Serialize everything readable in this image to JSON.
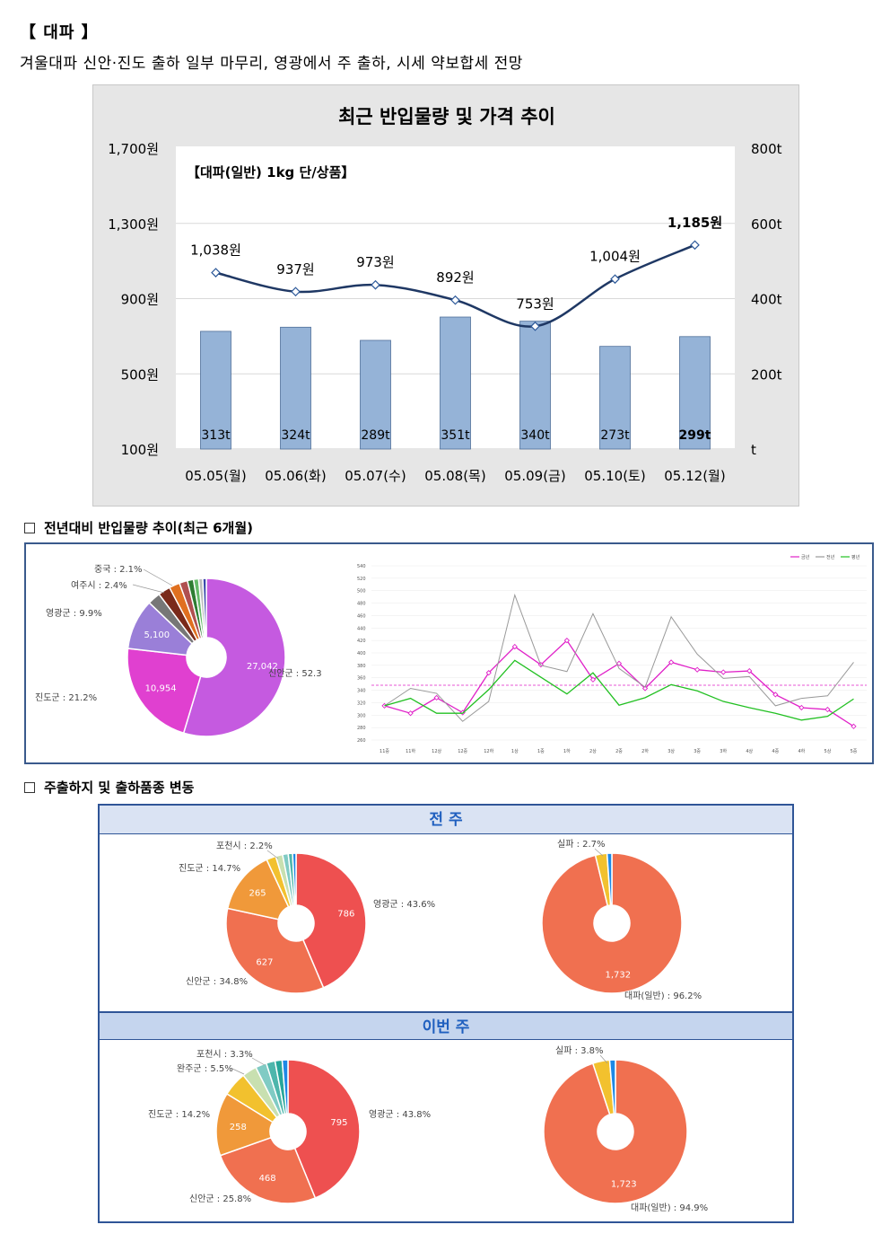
{
  "header": {
    "title": "【 대파 】",
    "description": "겨울대파 신안·진도 출하 일부 마무리, 영광에서 주 출하, 시세 약보합세 전망"
  },
  "price_chart": {
    "title": "최근 반입물량 및 가격 추이",
    "subtitle": "【대파(일반) 1kg 단/상품】",
    "left_ticks": [
      "1,700원",
      "1,300원",
      "900원",
      "500원",
      "100원"
    ],
    "right_ticks": [
      "800t",
      "600t",
      "400t",
      "200t",
      "t"
    ]
  },
  "yoy_heading": "전년대비 반입물량 추이(최근 6개월)",
  "ship_heading": "주출하지 및 출하품종 변동",
  "ship_panel": {
    "prev_label": "전 주",
    "curr_label": "이번 주"
  },
  "colors": {
    "bar": "#95b3d7",
    "price_line": "#1f3864",
    "pie_shinan": "#c55ae0",
    "pie_jindo": "#e040d0",
    "pie_yeonggwang_purple": "#9a7fd8",
    "ship_red": "#ee5050",
    "ship_orange": "#f07050",
    "ship_amber": "#f0993a",
    "series_current": "#e020c8",
    "series_last_year": "#999999",
    "series_average": "#22c022"
  },
  "chart_data": [
    {
      "id": "price-volume",
      "type": "bar+line",
      "title": "최근 반입물량 및 가격 추이",
      "subtitle": "【대파(일반) 1kg 단/상품】",
      "categories": [
        "05.05(월)",
        "05.06(화)",
        "05.07(수)",
        "05.08(목)",
        "05.09(금)",
        "05.10(토)",
        "05.12(월)"
      ],
      "series": [
        {
          "name": "반입물량",
          "type": "bar",
          "axis": "right",
          "unit": "t",
          "values": [
            313,
            324,
            289,
            351,
            340,
            273,
            299
          ],
          "labels": [
            "313t",
            "324t",
            "289t",
            "351t",
            "340t",
            "273t",
            "299t"
          ]
        },
        {
          "name": "가격",
          "type": "line",
          "axis": "left",
          "unit": "원",
          "values": [
            1038,
            937,
            973,
            892,
            753,
            1004,
            1185
          ],
          "labels": [
            "1,038원",
            "937원",
            "973원",
            "892원",
            "753원",
            "1,004원",
            "1,185원"
          ]
        }
      ],
      "ylim_left": [
        100,
        1700
      ],
      "ylim_right": [
        0,
        800
      ]
    },
    {
      "id": "yoy-origin-pie",
      "type": "pie",
      "slices": [
        {
          "label": "신안군 : 52.3%",
          "value": 27042,
          "value_label": "27,042",
          "pct": 52.3,
          "color": "#c55ae0"
        },
        {
          "label": "진도군 : 21.2%",
          "value": 10954,
          "value_label": "10,954",
          "pct": 21.2,
          "color": "#e040d0"
        },
        {
          "label": "영광군 : 9.9%",
          "value": 5100,
          "value_label": "5,100",
          "pct": 9.9,
          "color": "#9a7fd8"
        },
        {
          "label": "",
          "value": 0,
          "pct": 2.5,
          "color": "#777777"
        },
        {
          "label": "여주시 : 2.4%",
          "value": 0,
          "pct": 2.4,
          "color": "#7a2a1a"
        },
        {
          "label": "중국 : 2.1%",
          "value": 0,
          "pct": 2.1,
          "color": "#e07020"
        },
        {
          "label": "",
          "value": 0,
          "pct": 1.6,
          "color": "#b05050"
        },
        {
          "label": "",
          "value": 0,
          "pct": 1.2,
          "color": "#2e7d32"
        },
        {
          "label": "",
          "value": 0,
          "pct": 1.0,
          "color": "#66bb6a"
        },
        {
          "label": "",
          "value": 0,
          "pct": 0.8,
          "color": "#bbbbbb"
        },
        {
          "label": "",
          "value": 0,
          "pct": 0.7,
          "color": "#3949ab"
        }
      ]
    },
    {
      "id": "yoy-trend",
      "type": "line",
      "x": [
        "11중",
        "11하",
        "12상",
        "12중",
        "12하",
        "1상",
        "1중",
        "1하",
        "2상",
        "2중",
        "2하",
        "3상",
        "3중",
        "3하",
        "4상",
        "4중",
        "4하",
        "5상",
        "5중"
      ],
      "ylim": [
        260,
        540
      ],
      "yticks": [
        260,
        280,
        300,
        320,
        340,
        360,
        380,
        400,
        420,
        440,
        460,
        480,
        500,
        520,
        540
      ],
      "series": [
        {
          "name": "금년",
          "color": "#e020c8",
          "values": [
            315,
            303,
            328,
            304,
            368,
            410,
            381,
            420,
            357,
            383,
            343,
            385,
            373,
            369,
            371,
            333,
            312,
            309,
            282
          ]
        },
        {
          "name": "전년",
          "color": "#999999",
          "values": [
            315,
            343,
            335,
            290,
            322,
            493,
            380,
            370,
            463,
            375,
            345,
            458,
            398,
            359,
            362,
            315,
            327,
            331,
            385
          ]
        },
        {
          "name": "평년",
          "color": "#22c022",
          "values": [
            315,
            327,
            303,
            303,
            341,
            388,
            361,
            334,
            368,
            316,
            328,
            349,
            339,
            322,
            312,
            303,
            292,
            298,
            326
          ]
        }
      ],
      "reference_value": 348
    },
    {
      "id": "prev-week-origin",
      "type": "pie",
      "slices": [
        {
          "label": "영광군 : 43.6%",
          "value": 786,
          "value_label": "786",
          "pct": 43.6,
          "color": "#ee5050"
        },
        {
          "label": "신안군 : 34.8%",
          "value": 627,
          "value_label": "627",
          "pct": 34.8,
          "color": "#f07050"
        },
        {
          "label": "진도군 : 14.7%",
          "value": 265,
          "value_label": "265",
          "pct": 14.7,
          "color": "#f0993a"
        },
        {
          "label": "포천시 : 2.2%",
          "value": 0,
          "pct": 2.2,
          "color": "#f2c12e"
        },
        {
          "label": "",
          "value": 0,
          "pct": 1.6,
          "color": "#c8e0b0"
        },
        {
          "label": "",
          "value": 0,
          "pct": 1.3,
          "color": "#80cbc4"
        },
        {
          "label": "",
          "value": 0,
          "pct": 1.0,
          "color": "#4db6ac"
        },
        {
          "label": "",
          "value": 0,
          "pct": 0.8,
          "color": "#1e88e5"
        }
      ]
    },
    {
      "id": "prev-week-variety",
      "type": "pie",
      "slices": [
        {
          "label": "대파(일반) : 96.2%",
          "value": 1732,
          "value_label": "1,732",
          "pct": 96.2,
          "color": "#f07050"
        },
        {
          "label": "실파 : 2.7%",
          "value": 0,
          "pct": 2.7,
          "color": "#f2c12e"
        },
        {
          "label": "",
          "value": 0,
          "pct": 1.1,
          "color": "#1e88e5"
        }
      ]
    },
    {
      "id": "this-week-origin",
      "type": "pie",
      "slices": [
        {
          "label": "영광군 : 43.8%",
          "value": 795,
          "value_label": "795",
          "pct": 43.8,
          "color": "#ee5050"
        },
        {
          "label": "신안군 : 25.8%",
          "value": 468,
          "value_label": "468",
          "pct": 25.8,
          "color": "#f07050"
        },
        {
          "label": "진도군 : 14.2%",
          "value": 258,
          "value_label": "258",
          "pct": 14.2,
          "color": "#f0993a"
        },
        {
          "label": "완주군 : 5.5%",
          "value": 0,
          "pct": 5.5,
          "color": "#f2c12e"
        },
        {
          "label": "포천시 : 3.3%",
          "value": 0,
          "pct": 3.3,
          "color": "#c8e0b0"
        },
        {
          "label": "",
          "value": 0,
          "pct": 2.5,
          "color": "#80cbc4"
        },
        {
          "label": "",
          "value": 0,
          "pct": 2.0,
          "color": "#4db6ac"
        },
        {
          "label": "",
          "value": 0,
          "pct": 1.6,
          "color": "#26a69a"
        },
        {
          "label": "",
          "value": 0,
          "pct": 1.3,
          "color": "#1e88e5"
        }
      ]
    },
    {
      "id": "this-week-variety",
      "type": "pie",
      "slices": [
        {
          "label": "대파(일반) : 94.9%",
          "value": 1723,
          "value_label": "1,723",
          "pct": 94.9,
          "color": "#f07050"
        },
        {
          "label": "실파 : 3.8%",
          "value": 0,
          "pct": 3.8,
          "color": "#f2c12e"
        },
        {
          "label": "",
          "value": 0,
          "pct": 1.3,
          "color": "#1e88e5"
        }
      ]
    }
  ]
}
